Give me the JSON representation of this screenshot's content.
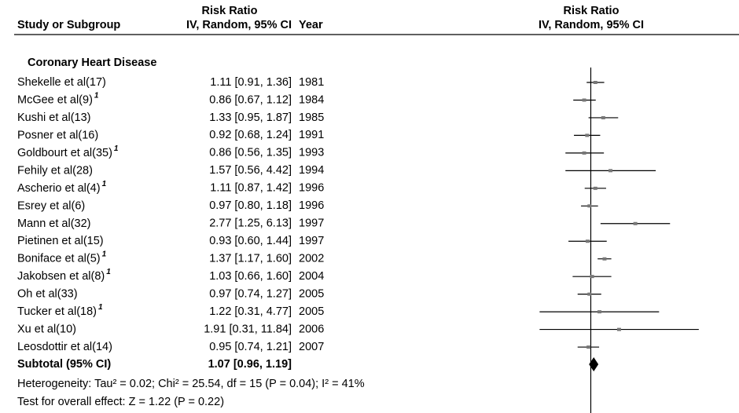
{
  "chart_data": {
    "type": "forest",
    "header": {
      "study": "Study or Subgroup",
      "effect_top": "Risk Ratio",
      "effect": "IV, Random, 95% CI",
      "year": "Year",
      "plot_top": "Risk Ratio",
      "plot": "IV, Random, 95% CI"
    },
    "subgroup": "Coronary Heart Disease",
    "categories": [
      "Shekelle et al(17)",
      "McGee et al(9)",
      "Kushi et al(13)",
      "Posner et al(16)",
      "Goldbourt et al(35)",
      "Fehily et al(28)",
      "Ascherio et al(4)",
      "Esrey et al(6)",
      "Mann et al(32)",
      "Pietinen et al(15)",
      "Boniface et al(5)",
      "Jakobsen et al(8)",
      "Oh et al(33)",
      "Tucker et al(18)",
      "Xu et al(10)",
      "Leosdottir et al(14)"
    ],
    "footnotes": [
      null,
      "1",
      null,
      null,
      "1",
      null,
      "1",
      null,
      null,
      null,
      "1",
      "1",
      null,
      "1",
      null,
      null
    ],
    "values": [
      1.11,
      0.86,
      1.33,
      0.92,
      0.86,
      1.57,
      1.11,
      0.97,
      2.77,
      0.93,
      1.37,
      1.03,
      0.97,
      1.22,
      1.91,
      0.95
    ],
    "ci_low": [
      0.91,
      0.67,
      0.95,
      0.68,
      0.56,
      0.56,
      0.87,
      0.8,
      1.25,
      0.6,
      1.17,
      0.66,
      0.74,
      0.31,
      0.31,
      0.74
    ],
    "ci_high": [
      1.36,
      1.12,
      1.87,
      1.24,
      1.35,
      4.42,
      1.42,
      1.18,
      6.13,
      1.44,
      1.6,
      1.6,
      1.27,
      4.77,
      11.84,
      1.21
    ],
    "value_labels": [
      "1.11 [0.91, 1.36]",
      "0.86 [0.67, 1.12]",
      "1.33 [0.95, 1.87]",
      "0.92 [0.68, 1.24]",
      "0.86 [0.56, 1.35]",
      "1.57 [0.56, 4.42]",
      "1.11 [0.87, 1.42]",
      "0.97 [0.80, 1.18]",
      "2.77 [1.25, 6.13]",
      "0.93 [0.60, 1.44]",
      "1.37 [1.17, 1.60]",
      "1.03 [0.66, 1.60]",
      "0.97 [0.74, 1.27]",
      "1.22 [0.31, 4.77]",
      "1.91 [0.31, 11.84]",
      "0.95 [0.74, 1.21]"
    ],
    "years": [
      1981,
      1984,
      1985,
      1991,
      1993,
      1994,
      1996,
      1996,
      1997,
      1997,
      2002,
      2004,
      2005,
      2005,
      2006,
      2007
    ],
    "subtotal": {
      "label": "Subtotal (95% CI)",
      "value": 1.07,
      "ci_low": 0.96,
      "ci_high": 1.19,
      "value_label": "1.07 [0.96, 1.19]"
    },
    "heterogeneity": "Heterogeneity: Tau² = 0.02; Chi² = 25.54, df = 15 (P = 0.04); I² = 41%",
    "overall_test": "Test for overall effect: Z = 1.22 (P = 0.22)",
    "xlim": [
      0.2,
      20
    ],
    "log_x": true,
    "reference_line": 1,
    "color": "#000000"
  }
}
